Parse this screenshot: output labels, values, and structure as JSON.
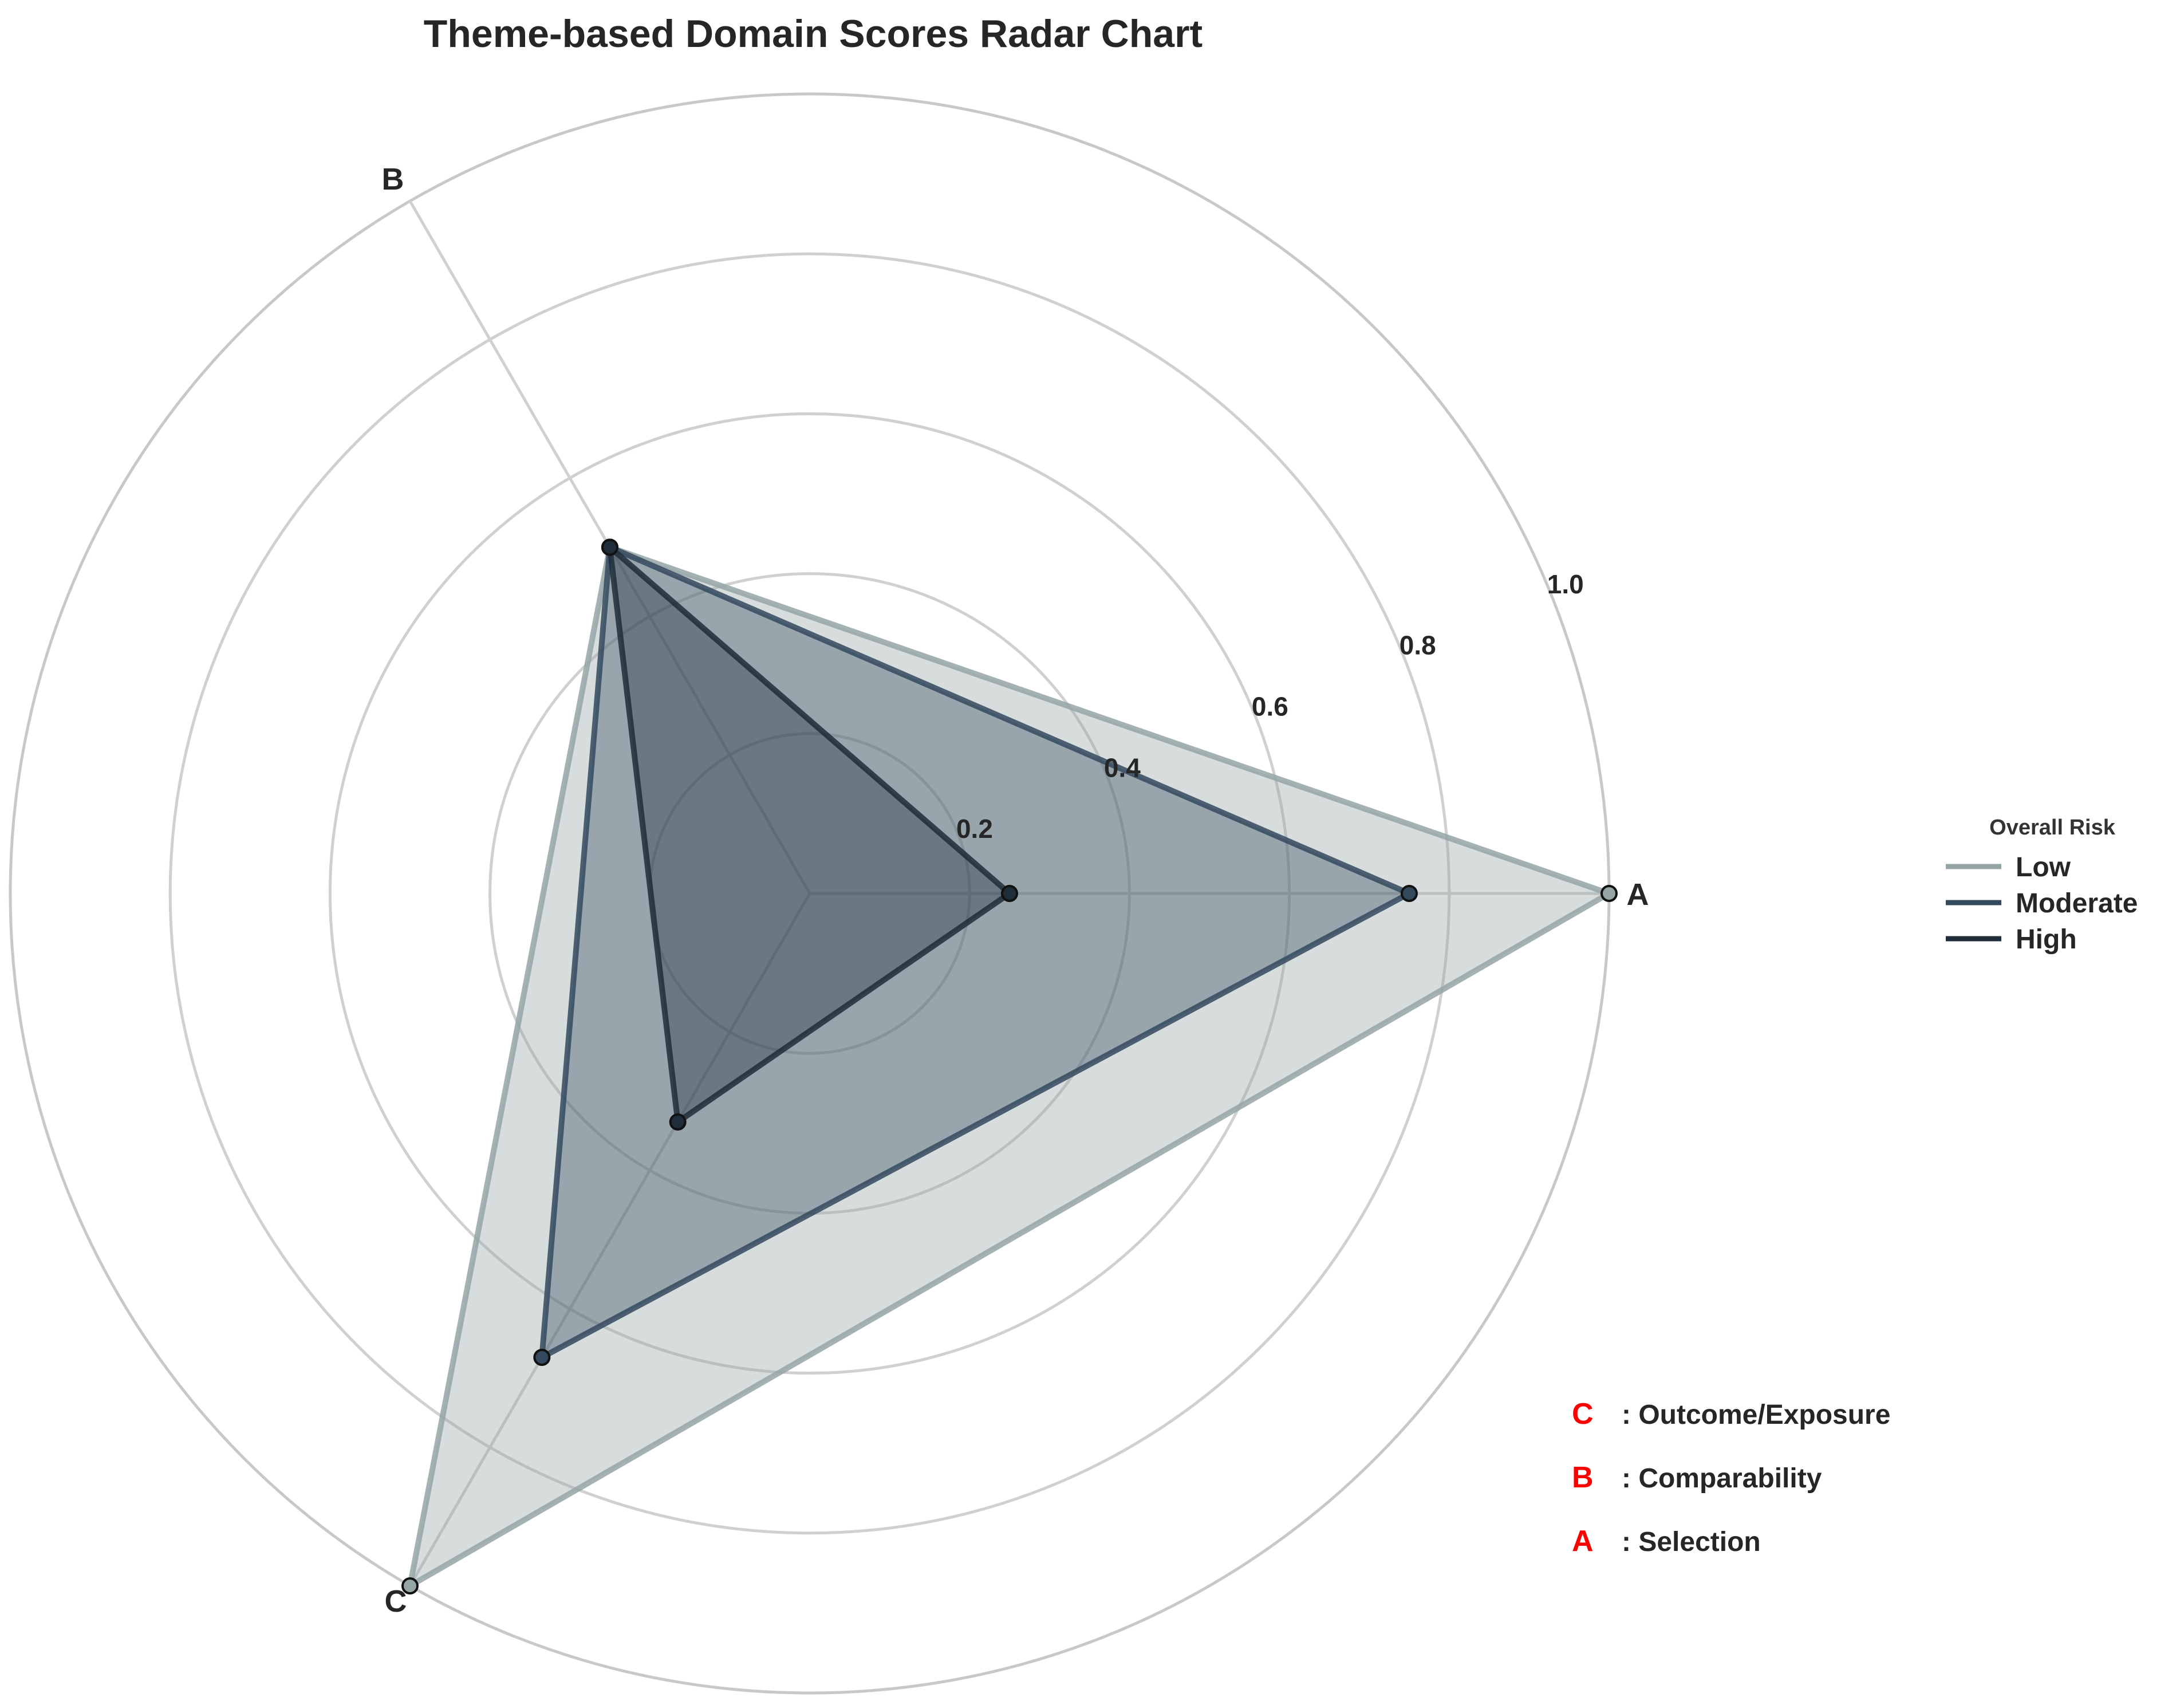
{
  "chart_data": {
    "type": "radar",
    "title": "Theme-based Domain Scores Radar Chart",
    "axes": [
      "A",
      "B",
      "C"
    ],
    "radial_range": [
      0,
      1.0
    ],
    "radial_ticks": [
      "0.2",
      "0.4",
      "0.6",
      "0.8",
      "1.0"
    ],
    "grid": true,
    "legend": {
      "title": "Overall Risk",
      "placement": "right"
    },
    "series": [
      {
        "name": "Low",
        "values": [
          1.0,
          0.5,
          1.0
        ],
        "color": "#95a5a6"
      },
      {
        "name": "Moderate",
        "values": [
          0.75,
          0.5,
          0.67
        ],
        "color": "#34495e"
      },
      {
        "name": "High",
        "values": [
          0.25,
          0.5,
          0.33
        ],
        "color": "#1f2d3a"
      }
    ],
    "domain_key": [
      {
        "letter": "C",
        "text": ": Outcome/Exposure"
      },
      {
        "letter": "B",
        "text": ": Comparability"
      },
      {
        "letter": "A",
        "text": ": Selection"
      }
    ],
    "colors": {
      "grid": "#d0d0d0",
      "key_letter": "#ff0000"
    }
  }
}
